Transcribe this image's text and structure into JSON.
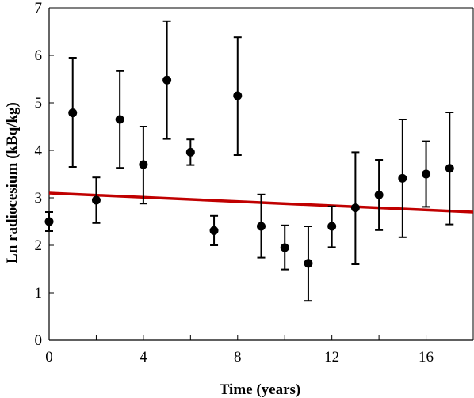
{
  "chart_data": {
    "type": "scatter",
    "xlabel": "Time (years)",
    "ylabel": "Ln radiocesium (kBq/kg)",
    "xlim": [
      0,
      18
    ],
    "ylim": [
      0,
      7
    ],
    "x_ticks": [
      0,
      4,
      8,
      12,
      16
    ],
    "y_ticks": [
      0,
      1,
      2,
      3,
      4,
      5,
      6,
      7
    ],
    "grid": false,
    "legend": "none",
    "series": [
      {
        "points": [
          {
            "x": 0,
            "y": 2.5,
            "low": 2.3,
            "high": 2.7
          },
          {
            "x": 1,
            "y": 4.79,
            "low": 3.65,
            "high": 5.95
          },
          {
            "x": 2,
            "y": 2.95,
            "low": 2.47,
            "high": 3.43
          },
          {
            "x": 3,
            "y": 4.65,
            "low": 3.63,
            "high": 5.67
          },
          {
            "x": 4,
            "y": 3.7,
            "low": 2.88,
            "high": 4.5
          },
          {
            "x": 5,
            "y": 5.48,
            "low": 4.24,
            "high": 6.72
          },
          {
            "x": 6,
            "y": 3.96,
            "low": 3.69,
            "high": 4.23
          },
          {
            "x": 7,
            "y": 2.31,
            "low": 2.0,
            "high": 2.62
          },
          {
            "x": 8,
            "y": 5.15,
            "low": 3.9,
            "high": 6.38
          },
          {
            "x": 9,
            "y": 2.4,
            "low": 1.74,
            "high": 3.07
          },
          {
            "x": 10,
            "y": 1.95,
            "low": 1.49,
            "high": 2.42
          },
          {
            "x": 11,
            "y": 1.62,
            "low": 0.83,
            "high": 2.4
          },
          {
            "x": 12,
            "y": 2.4,
            "low": 1.96,
            "high": 2.82
          },
          {
            "x": 13,
            "y": 2.79,
            "low": 1.6,
            "high": 3.96
          },
          {
            "x": 14,
            "y": 3.06,
            "low": 2.32,
            "high": 3.8
          },
          {
            "x": 15,
            "y": 3.41,
            "low": 2.17,
            "high": 4.65
          },
          {
            "x": 16,
            "y": 3.5,
            "low": 2.81,
            "high": 4.19
          },
          {
            "x": 17,
            "y": 3.62,
            "low": 2.44,
            "high": 4.8
          }
        ],
        "color": "#000000"
      }
    ],
    "trendline": {
      "x": [
        0,
        18
      ],
      "y": [
        3.1,
        2.7
      ],
      "color": "#c00000"
    }
  }
}
